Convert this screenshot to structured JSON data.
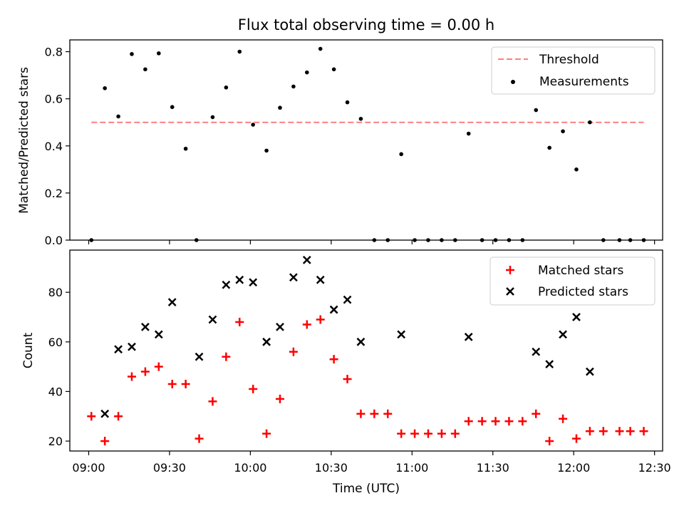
{
  "chart_data": [
    {
      "type": "scatter",
      "title": "Flux total observing time = 0.00 h",
      "xlabel": "",
      "ylabel": "Matched/Predicted stars",
      "ylim": [
        0,
        0.85
      ],
      "yticks": [
        "0.0",
        "0.2",
        "0.4",
        "0.6",
        "0.8"
      ],
      "grid": false,
      "legend_position": "top-right",
      "threshold": {
        "name": "Threshold",
        "value": 0.5,
        "color": "#ff7f7f",
        "x_start": "09:01",
        "x_end": "12:26"
      },
      "series": [
        {
          "name": "Measurements",
          "marker": "dot",
          "color": "#000000",
          "points": [
            [
              "09:01",
              0.0
            ],
            [
              "09:06",
              0.645
            ],
            [
              "09:11",
              0.525
            ],
            [
              "09:16",
              0.79
            ],
            [
              "09:21",
              0.725
            ],
            [
              "09:26",
              0.793
            ],
            [
              "09:31",
              0.565
            ],
            [
              "09:36",
              0.388
            ],
            [
              "09:40",
              0.0
            ],
            [
              "09:46",
              0.522
            ],
            [
              "09:51",
              0.648
            ],
            [
              "09:56",
              0.8
            ],
            [
              "10:01",
              0.49
            ],
            [
              "10:06",
              0.38
            ],
            [
              "10:11",
              0.562
            ],
            [
              "10:16",
              0.652
            ],
            [
              "10:21",
              0.712
            ],
            [
              "10:26",
              0.812
            ],
            [
              "10:31",
              0.725
            ],
            [
              "10:36",
              0.585
            ],
            [
              "10:41",
              0.515
            ],
            [
              "10:46",
              0.0
            ],
            [
              "10:51",
              0.0
            ],
            [
              "10:56",
              0.365
            ],
            [
              "11:01",
              0.0
            ],
            [
              "11:06",
              0.0
            ],
            [
              "11:11",
              0.0
            ],
            [
              "11:16",
              0.0
            ],
            [
              "11:21",
              0.452
            ],
            [
              "11:26",
              0.0
            ],
            [
              "11:31",
              0.0
            ],
            [
              "11:36",
              0.0
            ],
            [
              "11:41",
              0.0
            ],
            [
              "11:46",
              0.552
            ],
            [
              "11:51",
              0.392
            ],
            [
              "11:56",
              0.462
            ],
            [
              "12:01",
              0.3
            ],
            [
              "12:06",
              0.5
            ],
            [
              "12:11",
              0.0
            ],
            [
              "12:17",
              0.0
            ],
            [
              "12:21",
              0.0
            ],
            [
              "12:26",
              0.0
            ]
          ]
        }
      ]
    },
    {
      "type": "scatter",
      "title": "",
      "xlabel": "Time (UTC)",
      "ylabel": "Count",
      "ylim": [
        16,
        97
      ],
      "yticks": [
        "20",
        "40",
        "60",
        "80"
      ],
      "xticks": [
        "09:00",
        "09:30",
        "10:00",
        "10:30",
        "11:00",
        "11:30",
        "12:00",
        "12:30"
      ],
      "xlim": [
        "08:53",
        "12:33"
      ],
      "grid": false,
      "legend_position": "top-right",
      "series": [
        {
          "name": "Matched stars",
          "marker": "plus",
          "color": "#ff0000",
          "points": [
            [
              "09:01",
              30
            ],
            [
              "09:06",
              20
            ],
            [
              "09:11",
              30
            ],
            [
              "09:16",
              46
            ],
            [
              "09:21",
              48
            ],
            [
              "09:26",
              50
            ],
            [
              "09:31",
              43
            ],
            [
              "09:36",
              43
            ],
            [
              "09:41",
              21
            ],
            [
              "09:46",
              36
            ],
            [
              "09:51",
              54
            ],
            [
              "09:56",
              68
            ],
            [
              "10:01",
              41
            ],
            [
              "10:06",
              23
            ],
            [
              "10:11",
              37
            ],
            [
              "10:16",
              56
            ],
            [
              "10:21",
              67
            ],
            [
              "10:26",
              69
            ],
            [
              "10:31",
              53
            ],
            [
              "10:36",
              45
            ],
            [
              "10:41",
              31
            ],
            [
              "10:46",
              31
            ],
            [
              "10:51",
              31
            ],
            [
              "10:56",
              23
            ],
            [
              "11:01",
              23
            ],
            [
              "11:06",
              23
            ],
            [
              "11:11",
              23
            ],
            [
              "11:16",
              23
            ],
            [
              "11:21",
              28
            ],
            [
              "11:26",
              28
            ],
            [
              "11:31",
              28
            ],
            [
              "11:36",
              28
            ],
            [
              "11:41",
              28
            ],
            [
              "11:46",
              31
            ],
            [
              "11:51",
              20
            ],
            [
              "11:56",
              29
            ],
            [
              "12:01",
              21
            ],
            [
              "12:06",
              24
            ],
            [
              "12:11",
              24
            ],
            [
              "12:17",
              24
            ],
            [
              "12:21",
              24
            ],
            [
              "12:26",
              24
            ]
          ]
        },
        {
          "name": "Predicted stars",
          "marker": "x",
          "color": "#000000",
          "points": [
            [
              "09:06",
              31
            ],
            [
              "09:11",
              57
            ],
            [
              "09:16",
              58
            ],
            [
              "09:21",
              66
            ],
            [
              "09:26",
              63
            ],
            [
              "09:31",
              76
            ],
            [
              "09:41",
              54
            ],
            [
              "09:46",
              69
            ],
            [
              "09:51",
              83
            ],
            [
              "09:56",
              85
            ],
            [
              "10:01",
              84
            ],
            [
              "10:06",
              60
            ],
            [
              "10:11",
              66
            ],
            [
              "10:16",
              86
            ],
            [
              "10:21",
              93
            ],
            [
              "10:26",
              85
            ],
            [
              "10:31",
              73
            ],
            [
              "10:36",
              77
            ],
            [
              "10:41",
              60
            ],
            [
              "10:56",
              63
            ],
            [
              "11:21",
              62
            ],
            [
              "11:46",
              56
            ],
            [
              "11:51",
              51
            ],
            [
              "11:56",
              63
            ],
            [
              "12:01",
              70
            ],
            [
              "12:06",
              48
            ]
          ]
        }
      ]
    }
  ]
}
